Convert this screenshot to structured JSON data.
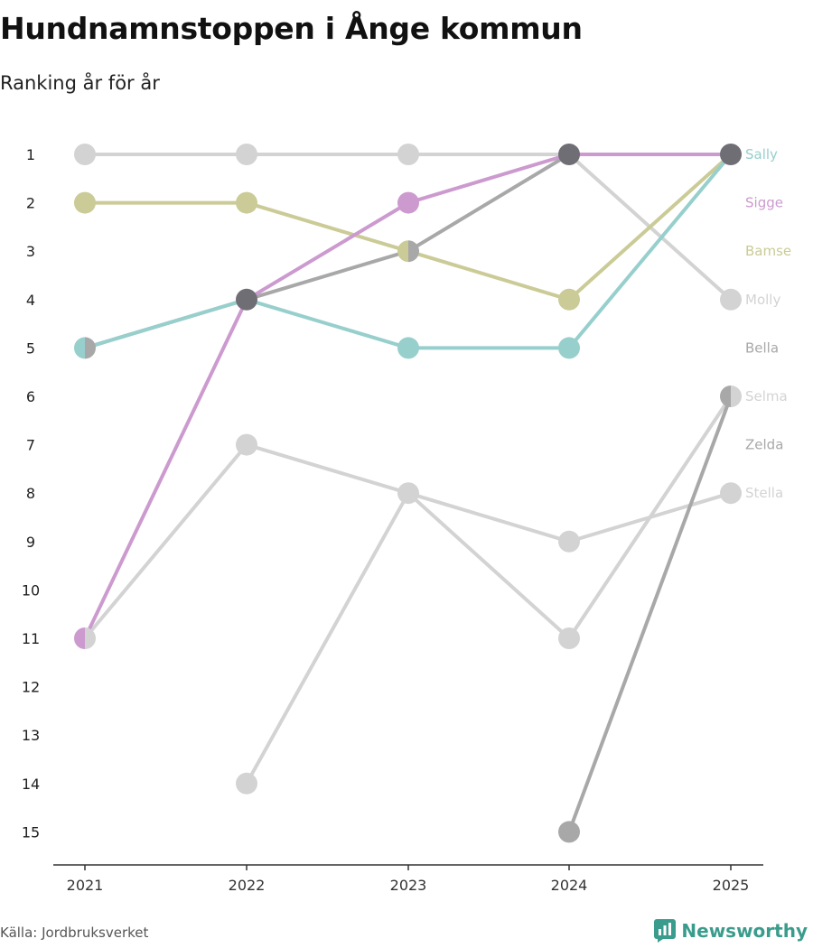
{
  "title": "Hundnamnstoppen i Ånge kommun",
  "subtitle": "Ranking år för år",
  "source": "Källa: Jordbruksverket",
  "brand": "Newsworthy",
  "colors": {
    "axis": "#333333",
    "brand": "#3a9c8c"
  },
  "chart_data": {
    "type": "line",
    "title": "Hundnamnstoppen i Ånge kommun",
    "subtitle": "Ranking år för år",
    "xlabel": "",
    "ylabel": "",
    "x": [
      "2021",
      "2022",
      "2023",
      "2024",
      "2025"
    ],
    "ylim": [
      1,
      15
    ],
    "y_inverted": true,
    "y_ticks": [
      1,
      2,
      3,
      4,
      5,
      6,
      7,
      8,
      9,
      10,
      11,
      12,
      13,
      14,
      15
    ],
    "series": [
      {
        "name": "Sally",
        "color": "#97cfcd",
        "values": [
          5,
          4,
          5,
          5,
          1
        ]
      },
      {
        "name": "Sigge",
        "color": "#cc9acf",
        "values": [
          11,
          4,
          2,
          1,
          1
        ]
      },
      {
        "name": "Bamse",
        "color": "#cbcb97",
        "values": [
          2,
          2,
          3,
          4,
          1
        ]
      },
      {
        "name": "Molly",
        "color": "#d3d3d3",
        "values": [
          1,
          1,
          1,
          1,
          4
        ]
      },
      {
        "name": "Bella",
        "color": "#a8a8a8",
        "values": [
          5,
          4,
          3,
          1,
          1
        ]
      },
      {
        "name": "Selma",
        "color": "#d3d3d3",
        "values": [
          null,
          14,
          8,
          11,
          6
        ]
      },
      {
        "name": "Zelda",
        "color": "#a8a8a8",
        "values": [
          null,
          null,
          null,
          15,
          6
        ]
      },
      {
        "name": "Stella",
        "color": "#d3d3d3",
        "values": [
          11,
          7,
          8,
          9,
          8
        ]
      }
    ],
    "label_ranks": [
      1,
      2,
      3,
      4,
      5,
      6,
      7,
      8
    ]
  }
}
